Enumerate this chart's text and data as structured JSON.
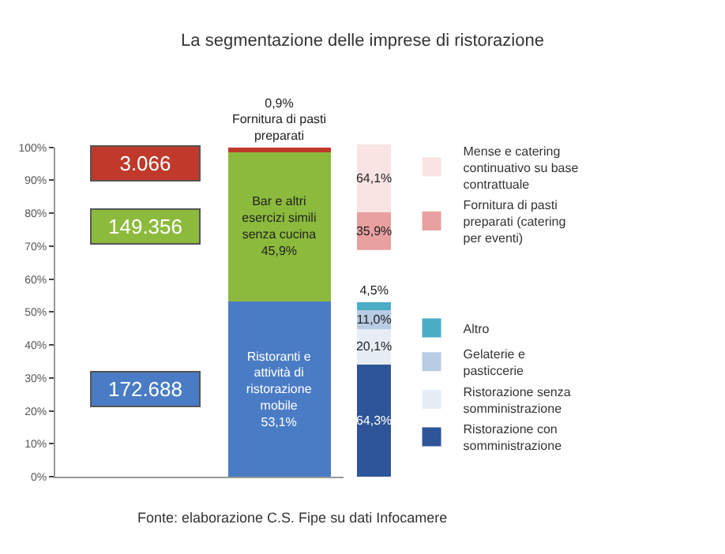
{
  "chart_data": [
    {
      "type": "bar",
      "title": "La segmentazione delle imprese di ristorazione",
      "stacked": true,
      "categories": [
        null
      ],
      "series": [
        {
          "name": "Ristoranti e attività di ristorazione mobile",
          "color": "#4a7cc5",
          "values": [
            53.1
          ],
          "value_labels": [
            "53,1%"
          ]
        },
        {
          "name": "Bar e altri esercizi simili senza cucina",
          "color": "#8cba3c",
          "values": [
            45.9
          ],
          "value_labels": [
            "45,9%"
          ]
        },
        {
          "name": "Fornitura di pasti preparati",
          "color": "#c0392b",
          "values": [
            0.9
          ],
          "value_labels": [
            "0,9%"
          ]
        }
      ],
      "ylim": [
        0,
        100
      ],
      "yticks": [
        {
          "value": 0,
          "label": "0%"
        },
        {
          "value": 10,
          "label": "10%"
        },
        {
          "value": 20,
          "label": "20%"
        },
        {
          "value": 30,
          "label": "30%"
        },
        {
          "value": 40,
          "label": "40%"
        },
        {
          "value": 50,
          "label": "50%"
        },
        {
          "value": 60,
          "label": "60%"
        },
        {
          "value": 70,
          "label": "70%"
        },
        {
          "value": 80,
          "label": "80%"
        },
        {
          "value": 90,
          "label": "90%"
        },
        {
          "value": 100,
          "label": "100%"
        }
      ],
      "annotations": [
        "172.688",
        "149.356",
        "3.066",
        "Fonte: elaborazione C.S. Fipe su dati Infocamere"
      ],
      "legend": false,
      "tick_labels": "y"
    },
    {
      "type": "bar",
      "stacked": true,
      "categories": [
        null
      ],
      "series": [
        {
          "name": "Fornitura di pasti preparati (catering per eventi)",
          "color": "#e8a0a0",
          "values": [
            35.9
          ],
          "value_labels": [
            "35,9%"
          ]
        },
        {
          "name": "Mense e catering continuativo su base contrattuale",
          "color": "#f9e3e3",
          "values": [
            64.1
          ],
          "value_labels": [
            "64,1%"
          ]
        }
      ],
      "legend": "right",
      "tick_labels": false
    },
    {
      "type": "bar",
      "stacked": true,
      "categories": [
        null
      ],
      "series": [
        {
          "name": "Ristorazione con somministrazione",
          "color": "#2e5597",
          "values": [
            64.3
          ],
          "value_labels": [
            "64,3%"
          ]
        },
        {
          "name": "Ristorazione senza somministrazione",
          "color": "#e6edf5",
          "values": [
            20.1
          ],
          "value_labels": [
            "20,1%"
          ]
        },
        {
          "name": "Gelaterie e pasticcerie",
          "color": "#b8cce4",
          "values": [
            11.0
          ],
          "value_labels": [
            "11,0%"
          ]
        },
        {
          "name": "Altro",
          "color": "#4bacc6",
          "values": [
            4.5
          ],
          "value_labels": [
            "4,5%"
          ]
        }
      ],
      "legend": "right",
      "tick_labels": false
    }
  ]
}
